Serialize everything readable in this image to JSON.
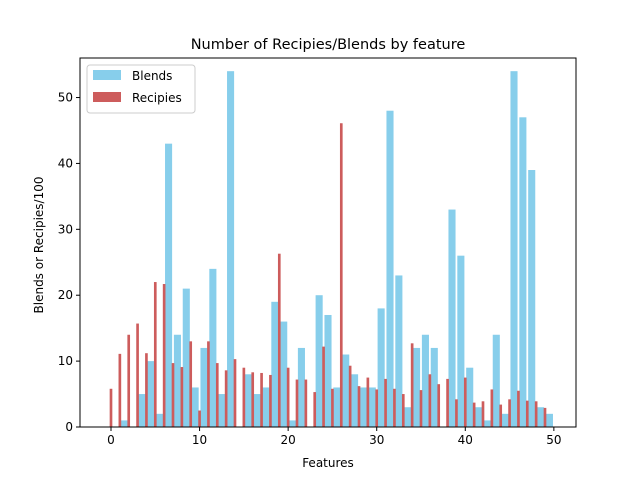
{
  "chart_data": {
    "type": "bar",
    "title": "Number of Recipies/Blends by feature",
    "xlabel": "Features",
    "ylabel": "Blends or Recipies/100",
    "xlim": [
      -3.5,
      52.5
    ],
    "ylim": [
      0,
      56
    ],
    "xticks": [
      0,
      10,
      20,
      30,
      40,
      50
    ],
    "yticks": [
      0,
      10,
      20,
      30,
      40,
      50
    ],
    "grid": false,
    "legend_position": "top-left",
    "x": [
      0,
      1,
      2,
      3,
      4,
      5,
      6,
      7,
      8,
      9,
      10,
      11,
      12,
      13,
      14,
      15,
      16,
      17,
      18,
      19,
      20,
      21,
      22,
      23,
      24,
      25,
      26,
      27,
      28,
      29,
      30,
      31,
      32,
      33,
      34,
      35,
      36,
      37,
      38,
      39,
      40,
      41,
      42,
      43,
      44,
      45,
      46,
      47,
      48,
      49
    ],
    "series": [
      {
        "name": "Blends",
        "color": "#87ceeb",
        "values": [
          0,
          1,
          0,
          5,
          10,
          2,
          43,
          14,
          21,
          6,
          12,
          24,
          5,
          54,
          0,
          8,
          5,
          6,
          19,
          16,
          1,
          12,
          0,
          20,
          17,
          6,
          11,
          8,
          6,
          6,
          18,
          48,
          23,
          3,
          12,
          14,
          12,
          0,
          33,
          26,
          9,
          3,
          1,
          14,
          2,
          54,
          47,
          39,
          3,
          2
        ]
      },
      {
        "name": "Recipies",
        "color": "#cd5c5c",
        "values": [
          5.8,
          11.1,
          14,
          15.7,
          11.2,
          22,
          21.7,
          9.7,
          9.1,
          13,
          2.5,
          13,
          9.7,
          8.6,
          10.3,
          9,
          8.3,
          8.2,
          7.9,
          26.3,
          9,
          7.2,
          7.2,
          5.3,
          12.2,
          5.8,
          46.1,
          9.3,
          6.2,
          7.5,
          5.7,
          7.3,
          5.8,
          5,
          12.7,
          5.6,
          8,
          6.5,
          7.3,
          4.2,
          7.5,
          3.7,
          3.9,
          5.7,
          3.4,
          4.2,
          5.5,
          4,
          3.9,
          2.9
        ]
      }
    ]
  }
}
